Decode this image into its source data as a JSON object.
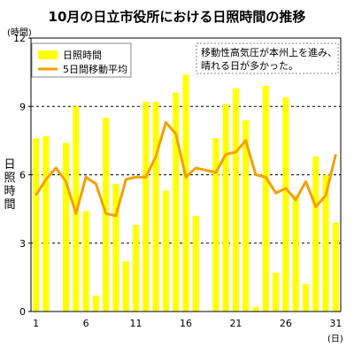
{
  "chart_data": {
    "type": "bar",
    "title": "10月の日立市役所における日照時間の推移",
    "ylabel_unit": "(時間)",
    "ylabel": "日照時間",
    "xlabel_unit": "(日)",
    "x_ticks": [
      "1",
      "6",
      "11",
      "16",
      "21",
      "26",
      "31"
    ],
    "y_ticks": [
      "0",
      "3",
      "6",
      "9",
      "12"
    ],
    "ylim": [
      0,
      12
    ],
    "x": [
      1,
      2,
      3,
      4,
      5,
      6,
      7,
      8,
      9,
      10,
      11,
      12,
      13,
      14,
      15,
      16,
      17,
      18,
      19,
      20,
      21,
      22,
      23,
      24,
      25,
      26,
      27,
      28,
      29,
      30,
      31
    ],
    "series": [
      {
        "name": "日照時間",
        "type": "bar",
        "color": "#ffff00",
        "values": [
          7.6,
          7.7,
          0.0,
          7.4,
          9.0,
          4.4,
          0.7,
          8.5,
          5.6,
          2.2,
          3.8,
          9.2,
          9.2,
          5.3,
          9.6,
          10.4,
          4.2,
          0.0,
          7.6,
          9.1,
          9.8,
          8.4,
          0.2,
          9.9,
          1.7,
          9.4,
          5.1,
          1.2,
          6.8,
          6.0,
          3.9
        ]
      },
      {
        "name": "5日間移動平均",
        "type": "line",
        "color": "#f5a000",
        "values": [
          5.1,
          5.8,
          6.3,
          5.7,
          4.3,
          5.9,
          5.6,
          4.3,
          4.2,
          5.8,
          5.9,
          5.9,
          6.8,
          8.3,
          7.8,
          5.9,
          6.3,
          6.2,
          6.1,
          6.9,
          7.0,
          7.5,
          6.0,
          5.9,
          5.2,
          5.4,
          4.9,
          5.7,
          4.6,
          5.1,
          6.9
        ]
      }
    ],
    "grid": "horizontal dashed at 3, 6, 9",
    "legend_position": "top-left",
    "annotation": [
      "移動性高気圧が本州上を進み、",
      "晴れる日が多かった。"
    ]
  }
}
